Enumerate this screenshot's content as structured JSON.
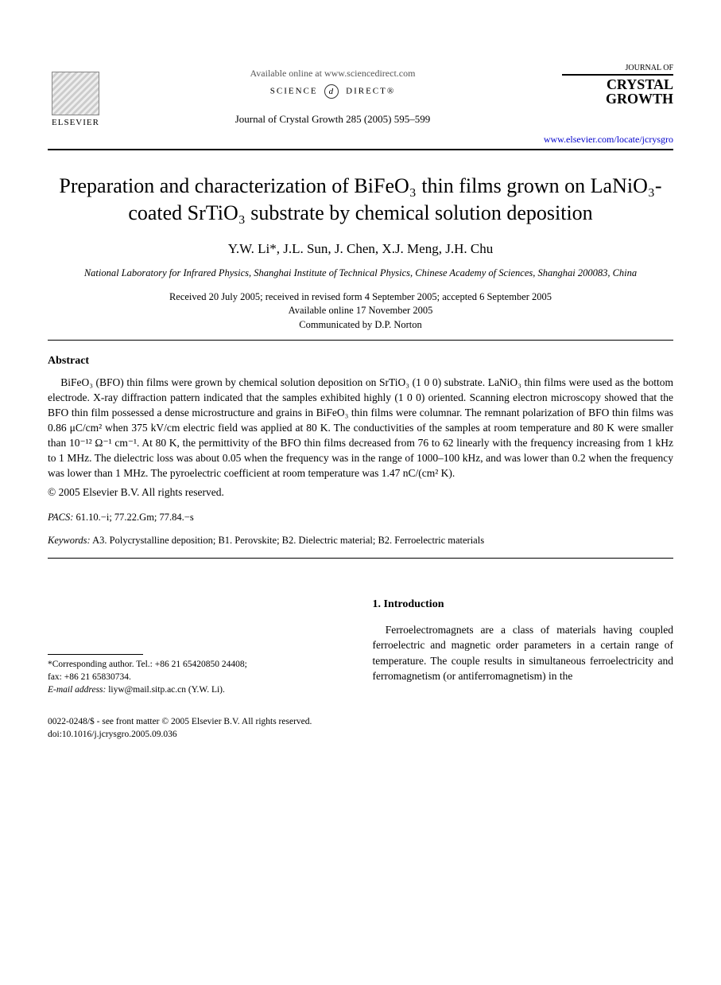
{
  "header": {
    "publisher": "ELSEVIER",
    "available_online": "Available online at www.sciencedirect.com",
    "science_direct_left": "SCIENCE",
    "science_direct_logo": "d",
    "science_direct_right": "DIRECT®",
    "journal_reference": "Journal of Crystal Growth 285 (2005) 595–599",
    "journal_logo_prefix": "JOURNAL OF",
    "journal_logo_line1": "CRYSTAL",
    "journal_logo_line2": "GROWTH",
    "journal_url": "www.elsevier.com/locate/jcrysgro"
  },
  "article": {
    "title": "Preparation and characterization of BiFeO₃ thin films grown on LaNiO₃-coated SrTiO₃ substrate by chemical solution deposition",
    "authors": "Y.W. Li*, J.L. Sun, J. Chen, X.J. Meng, J.H. Chu",
    "affiliation": "National Laboratory for Infrared Physics, Shanghai Institute of Technical Physics, Chinese Academy of Sciences, Shanghai 200083, China",
    "received": "Received 20 July 2005; received in revised form 4 September 2005; accepted 6 September 2005",
    "available": "Available online 17 November 2005",
    "communicated": "Communicated by D.P. Norton"
  },
  "abstract": {
    "heading": "Abstract",
    "body": "BiFeO₃ (BFO) thin films were grown by chemical solution deposition on SrTiO₃ (1 0 0) substrate. LaNiO₃ thin films were used as the bottom electrode. X-ray diffraction pattern indicated that the samples exhibited highly (1 0 0) oriented. Scanning electron microscopy showed that the BFO thin film possessed a dense microstructure and grains in BiFeO₃ thin films were columnar. The remnant polarization of BFO thin films was 0.86 μC/cm² when 375 kV/cm electric field was applied at 80 K. The conductivities of the samples at room temperature and 80 K were smaller than 10⁻¹² Ω⁻¹ cm⁻¹. At 80 K, the permittivity of the BFO thin films decreased from 76 to 62 linearly with the frequency increasing from 1 kHz to 1 MHz. The dielectric loss was about 0.05 when the frequency was in the range of 1000–100 kHz, and was lower than 0.2 when the frequency was lower than 1 MHz. The pyroelectric coefficient at room temperature was 1.47 nC/(cm² K).",
    "copyright": "© 2005 Elsevier B.V. All rights reserved."
  },
  "meta": {
    "pacs_label": "PACS:",
    "pacs_value": "61.10.−i; 77.22.Gm; 77.84.−s",
    "keywords_label": "Keywords:",
    "keywords_value": "A3. Polycrystalline deposition; B1. Perovskite; B2. Dielectric material; B2. Ferroelectric materials"
  },
  "section1": {
    "heading": "1. Introduction",
    "body": "Ferroelectromagnets are a class of materials having coupled ferroelectric and magnetic order parameters in a certain range of temperature. The couple results in simultaneous ferroelectricity and ferromagnetism (or antiferromagnetism) in the"
  },
  "footnote": {
    "corresponding": "*Corresponding author. Tel.: +86 21 65420850 24408;",
    "fax": "fax: +86 21 65830734.",
    "email_label": "E-mail address:",
    "email_value": "liyw@mail.sitp.ac.cn (Y.W. Li)."
  },
  "footer": {
    "line1": "0022-0248/$ - see front matter © 2005 Elsevier B.V. All rights reserved.",
    "line2": "doi:10.1016/j.jcrysgro.2005.09.036"
  }
}
